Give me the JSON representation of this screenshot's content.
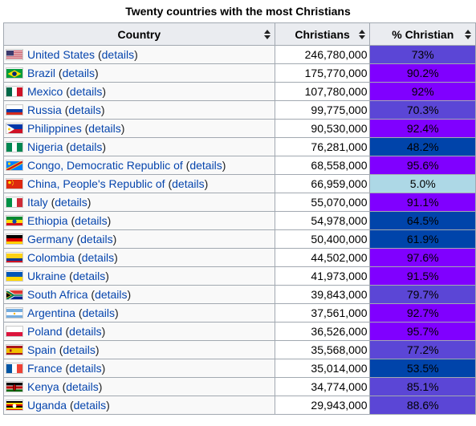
{
  "caption": "Twenty countries with the most Christians",
  "headers": {
    "country": "Country",
    "christians": "Christians",
    "percent": "% Christian"
  },
  "details_label": "details",
  "rows": [
    {
      "country": "United States",
      "christians": "246,780,000",
      "percent": "73%",
      "color": "#5b46d6",
      "flag": "us"
    },
    {
      "country": "Brazil",
      "christians": "175,770,000",
      "percent": "90.2%",
      "color": "#8000ff",
      "flag": "br"
    },
    {
      "country": "Mexico",
      "christians": "107,780,000",
      "percent": "92%",
      "color": "#8000ff",
      "flag": "mx"
    },
    {
      "country": "Russia",
      "christians": "99,775,000",
      "percent": "70.3%",
      "color": "#5b46d6",
      "flag": "ru"
    },
    {
      "country": "Philippines",
      "christians": "90,530,000",
      "percent": "92.4%",
      "color": "#8000ff",
      "flag": "ph"
    },
    {
      "country": "Nigeria",
      "christians": "76,281,000",
      "percent": "48.2%",
      "color": "#0044aa",
      "flag": "ng"
    },
    {
      "country": "Congo, Democratic Republic of",
      "christians": "68,558,000",
      "percent": "95.6%",
      "color": "#8000ff",
      "flag": "cd"
    },
    {
      "country": "China, People's Republic of",
      "christians": "66,959,000",
      "percent": "5.0%",
      "color": "#add8e6",
      "flag": "cn"
    },
    {
      "country": "Italy",
      "christians": "55,070,000",
      "percent": "91.1%",
      "color": "#8000ff",
      "flag": "it"
    },
    {
      "country": "Ethiopia",
      "christians": "54,978,000",
      "percent": "64.5%",
      "color": "#0044aa",
      "flag": "et"
    },
    {
      "country": "Germany",
      "christians": "50,400,000",
      "percent": "61.9%",
      "color": "#0044aa",
      "flag": "de"
    },
    {
      "country": "Colombia",
      "christians": "44,502,000",
      "percent": "97.6%",
      "color": "#8000ff",
      "flag": "co"
    },
    {
      "country": "Ukraine",
      "christians": "41,973,000",
      "percent": "91.5%",
      "color": "#8000ff",
      "flag": "ua"
    },
    {
      "country": "South Africa",
      "christians": "39,843,000",
      "percent": "79.7%",
      "color": "#5b46d6",
      "flag": "za"
    },
    {
      "country": "Argentina",
      "christians": "37,561,000",
      "percent": "92.7%",
      "color": "#8000ff",
      "flag": "ar"
    },
    {
      "country": "Poland",
      "christians": "36,526,000",
      "percent": "95.7%",
      "color": "#8000ff",
      "flag": "pl"
    },
    {
      "country": "Spain",
      "christians": "35,568,000",
      "percent": "77.2%",
      "color": "#5b46d6",
      "flag": "es"
    },
    {
      "country": "France",
      "christians": "35,014,000",
      "percent": "53.5%",
      "color": "#0044aa",
      "flag": "fr"
    },
    {
      "country": "Kenya",
      "christians": "34,774,000",
      "percent": "85.1%",
      "color": "#5b46d6",
      "flag": "ke"
    },
    {
      "country": "Uganda",
      "christians": "29,943,000",
      "percent": "88.6%",
      "color": "#5b46d6",
      "flag": "ug"
    }
  ]
}
